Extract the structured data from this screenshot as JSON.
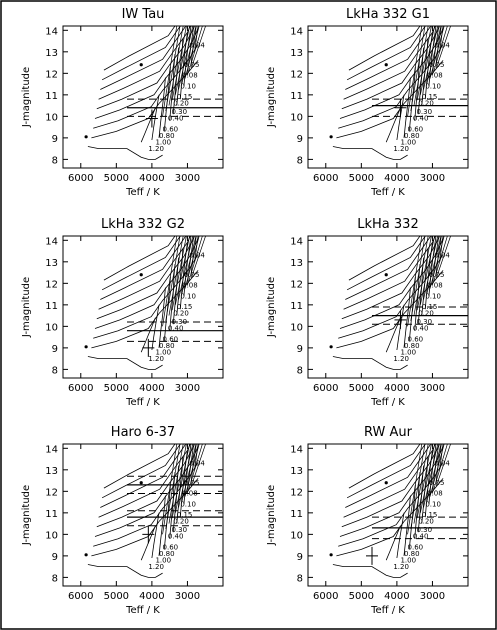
{
  "figure": {
    "xlabel": "Teff / K",
    "ylabel": "J-magnitude"
  },
  "chart_data": [
    {
      "type": "line",
      "title": "IW Tau",
      "xlim": [
        6500,
        2000
      ],
      "ylim": [
        14.2,
        7.6
      ],
      "xticks": [
        6000,
        5000,
        4000,
        3000
      ],
      "yticks": [
        8,
        9,
        10,
        11,
        12,
        13,
        14
      ],
      "mass_labels": [
        "1.20",
        "1.00",
        "0.80",
        "0.60",
        "0.40",
        "0.30",
        "0.20",
        "0.15",
        "0.10",
        "0.08",
        "0.05",
        "0.04"
      ],
      "observations": {
        "point_teff": 4000,
        "point_j": 9.9,
        "solid_j": 10.4,
        "dashed_j": [
          10.0,
          10.8
        ]
      }
    },
    {
      "type": "line",
      "title": "LkHa 332 G1",
      "xlim": [
        6500,
        2000
      ],
      "ylim": [
        14.2,
        7.6
      ],
      "xticks": [
        6000,
        5000,
        4000,
        3000
      ],
      "yticks": [
        8,
        9,
        10,
        11,
        12,
        13,
        14
      ],
      "mass_labels": [
        "1.20",
        "1.00",
        "0.80",
        "0.60",
        "0.40",
        "0.30",
        "0.20",
        "0.15",
        "0.10",
        "0.08",
        "0.05",
        "0.04"
      ],
      "observations": {
        "point_teff": 3900,
        "point_j": 10.4,
        "solid_j": 10.5,
        "dashed_j": [
          10.0,
          10.8
        ]
      }
    },
    {
      "type": "line",
      "title": "LkHa 332 G2",
      "xlim": [
        6500,
        2000
      ],
      "ylim": [
        14.2,
        7.6
      ],
      "xticks": [
        6000,
        5000,
        4000,
        3000
      ],
      "yticks": [
        8,
        9,
        10,
        11,
        12,
        13,
        14
      ],
      "mass_labels": [
        "1.20",
        "1.00",
        "0.80",
        "0.60",
        "0.40",
        "0.30",
        "0.20",
        "0.15",
        "0.10",
        "0.08",
        "0.05",
        "0.04"
      ],
      "observations": {
        "point_teff": 4100,
        "point_j": 9.0,
        "solid_j": 9.8,
        "dashed_j": [
          9.3,
          10.2
        ]
      }
    },
    {
      "type": "line",
      "title": "LkHa 332",
      "xlim": [
        6500,
        2000
      ],
      "ylim": [
        14.2,
        7.6
      ],
      "xticks": [
        6000,
        5000,
        4000,
        3000
      ],
      "yticks": [
        8,
        9,
        10,
        11,
        12,
        13,
        14
      ],
      "mass_labels": [
        "1.20",
        "1.00",
        "0.80",
        "0.60",
        "0.40",
        "0.30",
        "0.20",
        "0.15",
        "0.10",
        "0.08",
        "0.05",
        "0.04"
      ],
      "observations": {
        "point_teff": 3900,
        "point_j": 10.3,
        "solid_j": 10.5,
        "dashed_j": [
          10.1,
          10.9
        ]
      }
    },
    {
      "type": "line",
      "title": "Haro 6-37",
      "xlim": [
        6500,
        2000
      ],
      "ylim": [
        14.2,
        7.6
      ],
      "xticks": [
        6000,
        5000,
        4000,
        3000
      ],
      "yticks": [
        8,
        9,
        10,
        11,
        12,
        13,
        14
      ],
      "mass_labels": [
        "1.20",
        "1.00",
        "0.80",
        "0.60",
        "0.40",
        "0.30",
        "0.20",
        "0.15",
        "0.10",
        "0.08",
        "0.05",
        "0.04"
      ],
      "observations": {
        "point_teff": 4100,
        "point_j": 10.0,
        "solid_j": [
          10.8,
          12.3
        ],
        "dashed_j": [
          10.4,
          11.1,
          11.9,
          12.7
        ]
      }
    },
    {
      "type": "line",
      "title": "RW Aur",
      "xlim": [
        6500,
        2000
      ],
      "ylim": [
        14.2,
        7.6
      ],
      "xticks": [
        6000,
        5000,
        4000,
        3000
      ],
      "yticks": [
        8,
        9,
        10,
        11,
        12,
        13,
        14
      ],
      "mass_labels": [
        "1.20",
        "1.00",
        "0.80",
        "0.60",
        "0.40",
        "0.30",
        "0.20",
        "0.15",
        "0.10",
        "0.08",
        "0.05",
        "0.04"
      ],
      "observations": {
        "point_teff": 4700,
        "point_j": 9.0,
        "solid_j": 10.3,
        "dashed_j": [
          9.8,
          10.8
        ]
      }
    }
  ]
}
